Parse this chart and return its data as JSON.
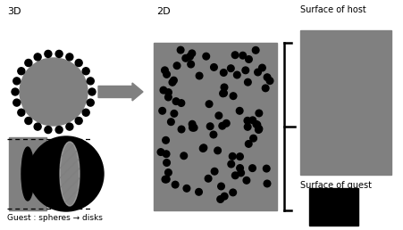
{
  "bg_color": "#ffffff",
  "gray_medium": "#808080",
  "gray_light": "#b0b0b0",
  "black": "#000000",
  "label_3d": "3D",
  "label_2d": "2D",
  "label_guest": "Guest : spheres → disks",
  "label_surface_host": "Surface of host",
  "label_surface_guest": "Surface of guest",
  "fig_w": 4.52,
  "fig_h": 2.58,
  "dpi": 100
}
